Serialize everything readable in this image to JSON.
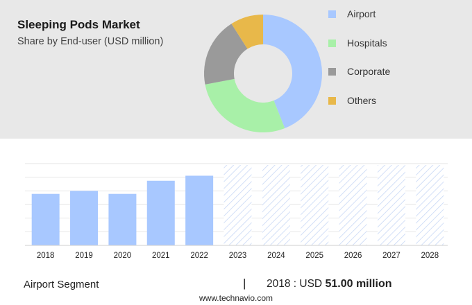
{
  "header": {
    "title": "Sleeping Pods Market",
    "subtitle": "Share by End-user (USD million)"
  },
  "chart_data": [
    {
      "type": "pie",
      "variant": "donut",
      "title": "Sleeping Pods Market",
      "subtitle": "Share by End-user (USD million)",
      "legend_position": "right",
      "slices": [
        {
          "label": "Airport",
          "value": 44,
          "color": "#a8c8ff"
        },
        {
          "label": "Hospitals",
          "value": 28,
          "color": "#a8f0a8"
        },
        {
          "label": "Corporate",
          "value": 19,
          "color": "#9a9a9a"
        },
        {
          "label": "Others",
          "value": 9,
          "color": "#e8b84a"
        }
      ]
    },
    {
      "type": "bar",
      "title": "",
      "xlabel": "",
      "ylabel": "",
      "categories": [
        "2018",
        "2019",
        "2020",
        "2021",
        "2022",
        "2023",
        "2024",
        "2025",
        "2026",
        "2027",
        "2028"
      ],
      "values": [
        51.0,
        54.0,
        51.0,
        64.0,
        69.0,
        null,
        null,
        null,
        null,
        null,
        null
      ],
      "forecast_from": "2023",
      "ylim": [
        0,
        81
      ],
      "grid": true,
      "colors": {
        "actual": "#a8c8ff",
        "forecast_hatch": "#c8d8f5"
      }
    }
  ],
  "footer": {
    "segment_label": "Airport Segment",
    "separator": "|",
    "value_prefix": "2018 : USD",
    "value_bold": "51.00 million",
    "website": "www.technavio.com"
  }
}
